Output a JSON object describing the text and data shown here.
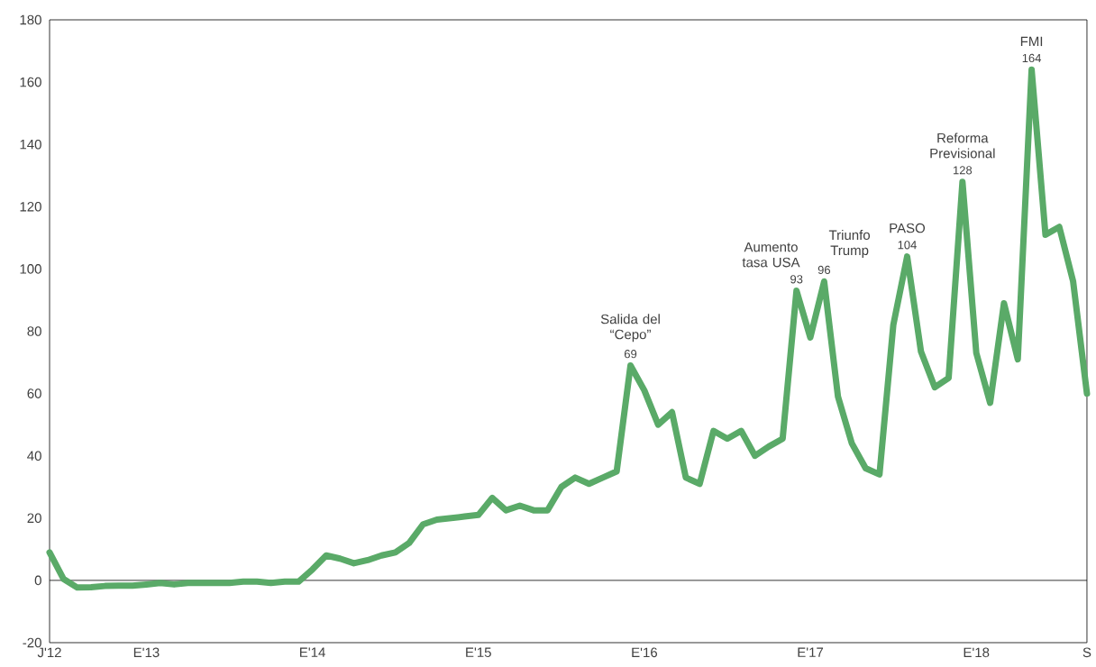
{
  "chart_data": {
    "type": "line",
    "color": "#5aaa68",
    "x": [
      "2012-06",
      "2012-07",
      "2012-08",
      "2012-09",
      "2012-10",
      "2012-11",
      "2012-12",
      "2013-01",
      "2013-02",
      "2013-03",
      "2013-04",
      "2013-05",
      "2013-06",
      "2013-07",
      "2013-08",
      "2013-09",
      "2013-10",
      "2013-11",
      "2013-12",
      "2014-01",
      "2014-02",
      "2014-03",
      "2014-04",
      "2014-05",
      "2014-06",
      "2014-07",
      "2014-08",
      "2014-09",
      "2014-10",
      "2014-11",
      "2014-12",
      "2015-01",
      "2015-02",
      "2015-03",
      "2015-04",
      "2015-05",
      "2015-06",
      "2015-07",
      "2015-08",
      "2015-09",
      "2015-10",
      "2015-11",
      "2015-12",
      "2016-01",
      "2016-02",
      "2016-03",
      "2016-04",
      "2016-05",
      "2016-06",
      "2016-07",
      "2016-08",
      "2016-09",
      "2016-10",
      "2016-11",
      "2016-12",
      "2017-01",
      "2017-02",
      "2017-03",
      "2017-04",
      "2017-05",
      "2017-06",
      "2017-07",
      "2017-08",
      "2017-09",
      "2017-10",
      "2017-11",
      "2017-12",
      "2018-01",
      "2018-02",
      "2018-03",
      "2018-04",
      "2018-05",
      "2018-06",
      "2018-07",
      "2018-08",
      "2018-09"
    ],
    "values": [
      9,
      0.5,
      -2.3,
      -2.2,
      -1.8,
      -1.7,
      -1.7,
      -1.3,
      -0.8,
      -1.3,
      -0.8,
      -0.8,
      -0.8,
      -0.8,
      -0.4,
      -0.4,
      -0.8,
      -0.4,
      -0.4,
      3.5,
      8,
      7,
      5.5,
      6.5,
      8,
      9,
      12,
      18,
      19.5,
      20,
      20.5,
      21,
      26.5,
      22.5,
      24,
      22.5,
      22.5,
      30,
      33,
      31,
      33,
      35,
      69,
      61,
      50,
      54,
      33,
      31,
      48,
      45.5,
      48,
      40,
      43,
      45.5,
      93,
      78,
      96,
      59,
      44,
      36,
      34,
      82,
      104,
      73.5,
      62,
      65,
      128,
      73,
      57,
      89,
      71,
      164,
      111,
      113.5,
      96,
      60
    ],
    "value_labels": [
      null,
      null,
      null,
      null,
      null,
      null,
      null,
      null,
      null,
      null,
      null,
      null,
      null,
      null,
      null,
      null,
      null,
      null,
      null,
      null,
      null,
      null,
      null,
      null,
      null,
      null,
      null,
      null,
      null,
      null,
      null,
      null,
      null,
      null,
      null,
      null,
      null,
      null,
      null,
      null,
      null,
      null,
      "69",
      null,
      null,
      null,
      null,
      null,
      null,
      null,
      null,
      null,
      null,
      null,
      "93",
      null,
      "96",
      null,
      null,
      null,
      null,
      null,
      "104",
      null,
      null,
      null,
      "128",
      null,
      null,
      null,
      null,
      "164",
      null,
      null,
      null,
      null
    ],
    "annotations": [
      {
        "text": "Salida del “Cepo”",
        "x": "2015-12",
        "y": 69
      },
      {
        "text": "Aumento tasa USA",
        "x": "2016-12",
        "y": 93
      },
      {
        "text": "Triunfo Trump",
        "x": "2017-02",
        "y": 96
      },
      {
        "text": "PASO",
        "x": "2017-08",
        "y": 104
      },
      {
        "text": "Reforma Previsional",
        "x": "2017-12",
        "y": 128
      },
      {
        "text": "FMI",
        "x": "2018-05",
        "y": 164
      }
    ],
    "xlim": [
      "2012-06",
      "2018-09"
    ],
    "xticks": [
      {
        "value": "2012-06",
        "label": "J'12"
      },
      {
        "value": "2013-01",
        "label": "E'13"
      },
      {
        "value": "2014-01",
        "label": "E'14"
      },
      {
        "value": "2015-01",
        "label": "E'15"
      },
      {
        "value": "2016-01",
        "label": "E'16"
      },
      {
        "value": "2017-01",
        "label": "E'17"
      },
      {
        "value": "2018-01",
        "label": "E'18"
      },
      {
        "value": "2018-09",
        "label": "S"
      }
    ],
    "ylim": [
      -20,
      180
    ],
    "yticks": [
      -20,
      0,
      20,
      40,
      60,
      80,
      100,
      120,
      140,
      160,
      180
    ],
    "ref_lines": [
      {
        "axis": "y",
        "value": 0,
        "color": "#000000"
      }
    ]
  }
}
